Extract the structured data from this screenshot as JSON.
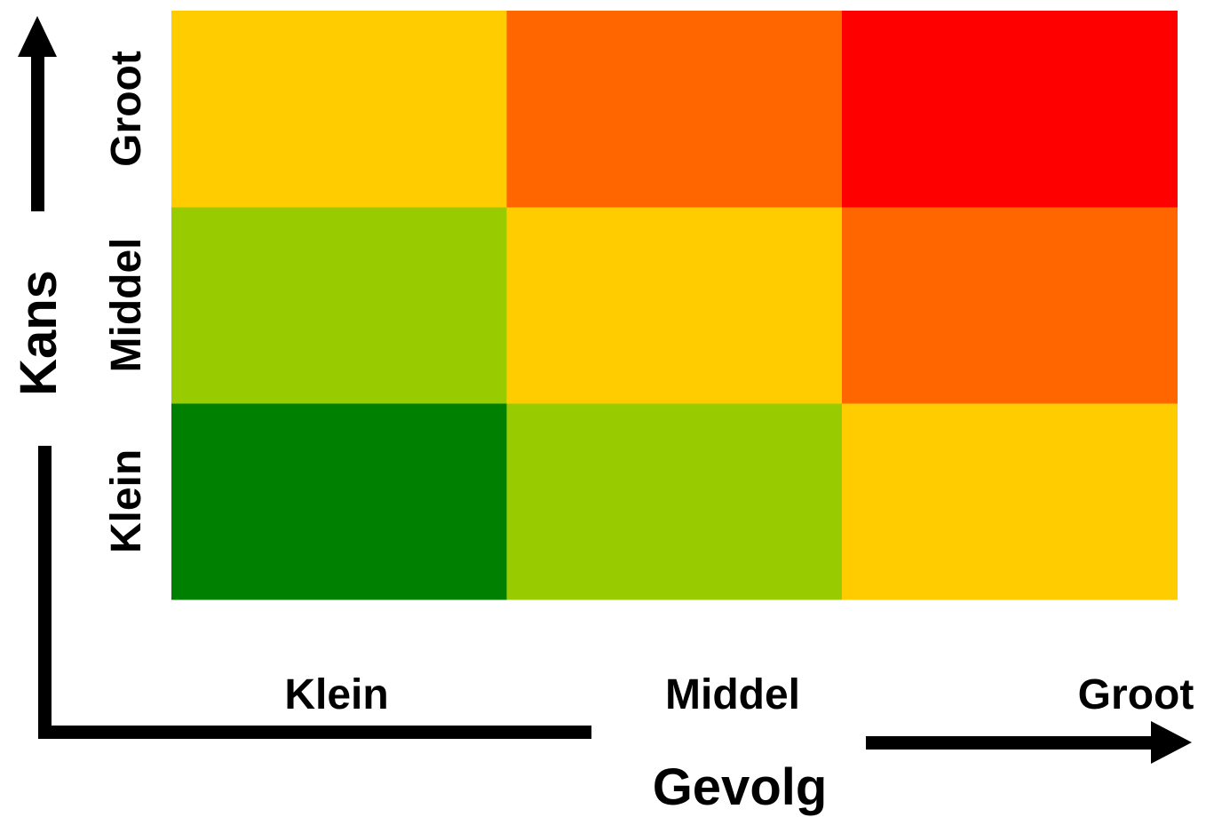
{
  "chart_data": {
    "type": "heatmap",
    "title": "",
    "xlabel": "Gevolg",
    "ylabel": "Kans",
    "x_categories": [
      "Klein",
      "Middel",
      "Groot"
    ],
    "y_categories": [
      "Klein",
      "Middel",
      "Groot"
    ],
    "levels": [
      [
        0,
        1,
        2
      ],
      [
        1,
        2,
        3
      ],
      [
        2,
        3,
        4
      ]
    ],
    "level_colors": [
      "#008000",
      "#99CC00",
      "#FFCC00",
      "#FF6600",
      "#FF0000"
    ],
    "grid": false,
    "legend": "none"
  }
}
